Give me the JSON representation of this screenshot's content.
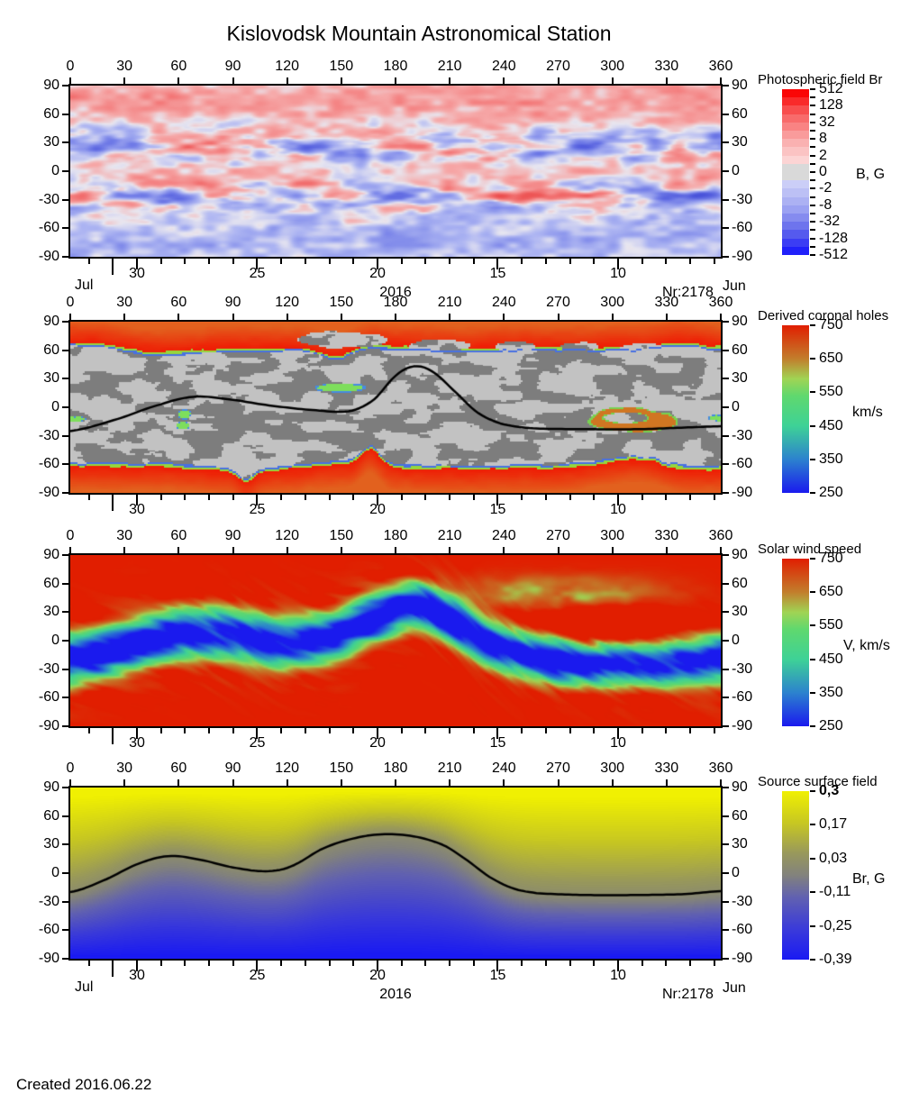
{
  "title": "Kislovodsk Mountain Astronomical Station",
  "created": "Created  2016.06.22",
  "axis": {
    "x_labels": [
      "0",
      "30",
      "60",
      "90",
      "120",
      "150",
      "180",
      "210",
      "240",
      "270",
      "300",
      "330",
      "360"
    ],
    "y_labels": [
      "90",
      "60",
      "30",
      "0",
      "-30",
      "-60",
      "-90"
    ],
    "date_labels": [
      "30",
      "25",
      "20",
      "15",
      "10"
    ],
    "month_left": "Jul",
    "month_right": "Jun",
    "year": "2016",
    "rotation": "Nr:2178"
  },
  "panels": [
    {
      "name": "photospheric-field",
      "months_row": true,
      "colorbar": {
        "title": "Photospheric field Br",
        "unit": "B, G",
        "tick_labels": [
          "512",
          "128",
          "32",
          "8",
          "2",
          "0",
          "-2",
          "-8",
          "-32",
          "-128",
          "-512"
        ]
      }
    },
    {
      "name": "coronal-holes",
      "months_row": false,
      "colorbar": {
        "title": "Derived coronal holes",
        "unit": "km/s",
        "tick_labels": [
          "750",
          "650",
          "550",
          "450",
          "350",
          "250"
        ]
      }
    },
    {
      "name": "solar-wind",
      "months_row": false,
      "colorbar": {
        "title": "Solar wind speed",
        "unit": "V, km/s",
        "tick_labels": [
          "750",
          "650",
          "550",
          "450",
          "350",
          "250"
        ]
      }
    },
    {
      "name": "source-surface-field",
      "months_row": true,
      "colorbar": {
        "title": "Source surface field",
        "unit": "Br, G",
        "bold_first": true,
        "tick_labels": [
          "0,3",
          "0,17",
          "0,03",
          "-0,11",
          "-0,25",
          "-0,39"
        ]
      }
    }
  ],
  "chart_data": [
    {
      "type": "heatmap",
      "title": "Photospheric field Br",
      "x_range": [
        0,
        360
      ],
      "y_range": [
        -90,
        90
      ],
      "x_ticks": [
        0,
        30,
        60,
        90,
        120,
        150,
        180,
        210,
        240,
        270,
        300,
        330,
        360
      ],
      "y_ticks": [
        90,
        60,
        30,
        0,
        -30,
        -60,
        -90
      ],
      "date_ticks": [
        "30",
        "25",
        "20",
        "15",
        "10"
      ],
      "colorbar": {
        "title": "Photospheric field Br",
        "unit": "B, G",
        "tick_values": [
          512,
          128,
          32,
          8,
          2,
          0,
          -2,
          -8,
          -32,
          -128,
          -512
        ],
        "scale": "symmetric-log",
        "positive_color": "#e83a3a",
        "negative_color": "#4852da",
        "zero_color": "#d9d9d9"
      }
    },
    {
      "type": "heatmap",
      "title": "Derived coronal holes",
      "x_range": [
        0,
        360
      ],
      "y_range": [
        -90,
        90
      ],
      "x_ticks": [
        0,
        30,
        60,
        90,
        120,
        150,
        180,
        210,
        240,
        270,
        300,
        330,
        360
      ],
      "y_ticks": [
        90,
        60,
        30,
        0,
        -30,
        -60,
        -90
      ],
      "date_ticks": [
        "30",
        "25",
        "20",
        "15",
        "10"
      ],
      "colorbar": {
        "title": "Derived coronal holes",
        "unit": "km/s",
        "tick_values": [
          750,
          650,
          550,
          450,
          350,
          250
        ],
        "range": [
          250,
          750
        ]
      },
      "neutral_line": [
        [
          0,
          -25
        ],
        [
          25,
          -13
        ],
        [
          50,
          3
        ],
        [
          68,
          11
        ],
        [
          85,
          9
        ],
        [
          110,
          2
        ],
        [
          135,
          -3
        ],
        [
          155,
          -4
        ],
        [
          168,
          8
        ],
        [
          180,
          33
        ],
        [
          190,
          43
        ],
        [
          200,
          38
        ],
        [
          212,
          18
        ],
        [
          225,
          -5
        ],
        [
          238,
          -17
        ],
        [
          255,
          -22
        ],
        [
          285,
          -23
        ],
        [
          315,
          -23
        ],
        [
          345,
          -21
        ],
        [
          360,
          -20
        ]
      ]
    },
    {
      "type": "heatmap",
      "title": "Solar wind speed",
      "x_range": [
        0,
        360
      ],
      "y_range": [
        -90,
        90
      ],
      "x_ticks": [
        0,
        30,
        60,
        90,
        120,
        150,
        180,
        210,
        240,
        270,
        300,
        330,
        360
      ],
      "y_ticks": [
        90,
        60,
        30,
        0,
        -30,
        -60,
        -90
      ],
      "date_ticks": [
        "30",
        "25",
        "20",
        "15",
        "10"
      ],
      "colorbar": {
        "title": "Solar wind speed",
        "unit": "V, km/s",
        "tick_values": [
          750,
          650,
          550,
          450,
          350,
          250
        ],
        "range": [
          250,
          750
        ]
      },
      "band_center": [
        [
          0,
          -20
        ],
        [
          30,
          -6
        ],
        [
          60,
          8
        ],
        [
          90,
          6
        ],
        [
          115,
          -2
        ],
        [
          145,
          5
        ],
        [
          170,
          25
        ],
        [
          190,
          36
        ],
        [
          210,
          22
        ],
        [
          230,
          0
        ],
        [
          255,
          -16
        ],
        [
          285,
          -22
        ],
        [
          315,
          -22
        ],
        [
          340,
          -21
        ],
        [
          360,
          -20
        ]
      ]
    },
    {
      "type": "heatmap",
      "title": "Source surface field",
      "x_range": [
        0,
        360
      ],
      "y_range": [
        -90,
        90
      ],
      "x_ticks": [
        0,
        30,
        60,
        90,
        120,
        150,
        180,
        210,
        240,
        270,
        300,
        330,
        360
      ],
      "y_ticks": [
        90,
        60,
        30,
        0,
        -30,
        -60,
        -90
      ],
      "date_ticks": [
        "30",
        "25",
        "20",
        "15",
        "10"
      ],
      "colorbar": {
        "title": "Source surface field",
        "unit": "Br, G",
        "tick_values": [
          0.3,
          0.17,
          0.03,
          -0.11,
          -0.25,
          -0.39
        ],
        "range": [
          -0.39,
          0.3
        ],
        "positive_color": "#f2f200",
        "negative_color": "#1c1cf2"
      },
      "neutral_line": [
        [
          0,
          -20
        ],
        [
          18,
          -8
        ],
        [
          38,
          10
        ],
        [
          55,
          18
        ],
        [
          72,
          14
        ],
        [
          90,
          6
        ],
        [
          108,
          2
        ],
        [
          122,
          7
        ],
        [
          140,
          26
        ],
        [
          158,
          37
        ],
        [
          175,
          41
        ],
        [
          192,
          38
        ],
        [
          207,
          29
        ],
        [
          220,
          13
        ],
        [
          232,
          -4
        ],
        [
          245,
          -16
        ],
        [
          258,
          -21
        ],
        [
          285,
          -23
        ],
        [
          315,
          -23
        ],
        [
          340,
          -22
        ],
        [
          360,
          -19
        ]
      ]
    }
  ],
  "colors": {
    "coronal_gray_light": "#c2c2c2",
    "coronal_gray_dark": "#7d7d7d",
    "coronal_red": "#ee1602",
    "wind_scale": [
      "#e11e00",
      "#c27e2c",
      "#60d86e",
      "#3ed296",
      "#2c82ce",
      "#1a1aee"
    ],
    "source_scale": [
      "#f0f002",
      "#979760",
      "#1a1af3"
    ]
  }
}
